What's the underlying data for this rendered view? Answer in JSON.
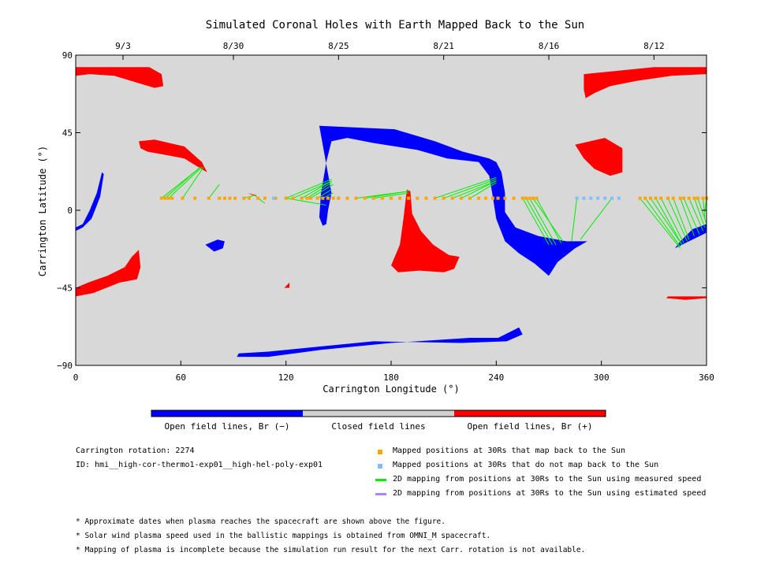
{
  "chart_data": {
    "type": "scatter",
    "title": "Simulated Coronal Holes with Earth Mapped Back to the Sun",
    "xlabel": "Carrington Longitude (°)",
    "ylabel": "Carrington Latitude (°)",
    "xlim": [
      0,
      360
    ],
    "ylim": [
      -90,
      90
    ],
    "xticks": [
      0,
      60,
      120,
      180,
      240,
      300,
      360
    ],
    "yticks": [
      90,
      45,
      0,
      -45,
      -90
    ],
    "ytick_labels": [
      "90",
      "45",
      "0",
      "−45",
      "−90"
    ],
    "top_axis_dates": [
      {
        "label": "9/3",
        "lon": 27
      },
      {
        "label": "8/30",
        "lon": 90
      },
      {
        "label": "8/25",
        "lon": 150
      },
      {
        "label": "8/21",
        "lon": 210
      },
      {
        "label": "8/16",
        "lon": 270
      },
      {
        "label": "8/12",
        "lon": 330
      }
    ],
    "colors": {
      "negative": "#0000ff",
      "positive": "#ff0000",
      "closed": "#d8d8d8",
      "mapped": "#ffa500",
      "unmapped": "#7fbfff",
      "measured_line": "#00ee00",
      "estimated_line": "#b280ff"
    },
    "coronal_holes": [
      {
        "polarity": "positive",
        "polygon": [
          [
            0,
            83
          ],
          [
            42,
            83
          ],
          [
            49,
            79
          ],
          [
            50,
            72
          ],
          [
            45,
            71
          ],
          [
            35,
            74
          ],
          [
            22,
            78
          ],
          [
            8,
            79
          ],
          [
            0,
            78
          ]
        ]
      },
      {
        "polarity": "positive",
        "polygon": [
          [
            290,
            79
          ],
          [
            330,
            83
          ],
          [
            360,
            83
          ],
          [
            360,
            79
          ],
          [
            340,
            78
          ],
          [
            320,
            75
          ],
          [
            305,
            72
          ],
          [
            296,
            68
          ],
          [
            291,
            65
          ],
          [
            290,
            70
          ]
        ]
      },
      {
        "polarity": "positive",
        "polygon": [
          [
            36,
            40
          ],
          [
            45,
            41
          ],
          [
            62,
            37
          ],
          [
            72,
            28
          ],
          [
            75,
            22
          ],
          [
            70,
            25
          ],
          [
            62,
            30
          ],
          [
            52,
            32
          ],
          [
            41,
            34
          ],
          [
            37,
            36
          ]
        ]
      },
      {
        "polarity": "positive",
        "polygon": [
          [
            285,
            38
          ],
          [
            302,
            42
          ],
          [
            312,
            36
          ],
          [
            312,
            22
          ],
          [
            305,
            20
          ],
          [
            296,
            24
          ],
          [
            290,
            30
          ]
        ]
      },
      {
        "polarity": "positive",
        "polygon": [
          [
            0,
            -50
          ],
          [
            10,
            -48
          ],
          [
            25,
            -42
          ],
          [
            35,
            -40
          ],
          [
            37,
            -33
          ],
          [
            36,
            -23
          ],
          [
            32,
            -27
          ],
          [
            28,
            -33
          ],
          [
            18,
            -38
          ],
          [
            7,
            -42
          ],
          [
            0,
            -45
          ]
        ]
      },
      {
        "polarity": "positive",
        "polygon": [
          [
            180,
            -32
          ],
          [
            185,
            -20
          ],
          [
            187,
            -5
          ],
          [
            189,
            12
          ],
          [
            191,
            11
          ],
          [
            192,
            -2
          ],
          [
            197,
            -12
          ],
          [
            204,
            -20
          ],
          [
            213,
            -26
          ],
          [
            219,
            -27
          ],
          [
            216,
            -34
          ],
          [
            210,
            -36
          ],
          [
            196,
            -35
          ],
          [
            184,
            -36
          ]
        ]
      },
      {
        "polarity": "positive",
        "polygon": [
          [
            120,
            -44
          ],
          [
            122,
            -42
          ],
          [
            122,
            -45
          ],
          [
            119,
            -45
          ]
        ]
      },
      {
        "polarity": "positive",
        "polygon": [
          [
            337,
            -51
          ],
          [
            348,
            -52
          ],
          [
            360,
            -51
          ],
          [
            360,
            -50
          ],
          [
            350,
            -50
          ],
          [
            338,
            -50
          ]
        ]
      },
      {
        "polarity": "positive",
        "polygon": [
          [
            98,
            10
          ],
          [
            102,
            9
          ],
          [
            106,
            6
          ],
          [
            103,
            8
          ]
        ]
      },
      {
        "polarity": "negative",
        "polygon": [
          [
            139,
            49
          ],
          [
            160,
            48
          ],
          [
            182,
            47
          ],
          [
            205,
            40
          ],
          [
            221,
            34
          ],
          [
            236,
            30
          ],
          [
            240,
            28
          ],
          [
            243,
            22
          ],
          [
            245,
            10
          ],
          [
            245,
            -1
          ],
          [
            251,
            -10
          ],
          [
            264,
            -15
          ],
          [
            280,
            -18
          ],
          [
            292,
            -18
          ],
          [
            285,
            -22
          ],
          [
            275,
            -30
          ],
          [
            270,
            -38
          ],
          [
            262,
            -31
          ],
          [
            253,
            -25
          ],
          [
            245,
            -18
          ],
          [
            240,
            -5
          ],
          [
            238,
            8
          ],
          [
            236,
            20
          ],
          [
            230,
            28
          ],
          [
            212,
            30
          ],
          [
            195,
            35
          ],
          [
            170,
            39
          ],
          [
            155,
            42
          ],
          [
            146,
            40
          ],
          [
            143,
            28
          ],
          [
            140,
            10
          ],
          [
            139,
            -4
          ],
          [
            141,
            -9
          ],
          [
            143,
            -8
          ],
          [
            144,
            0
          ],
          [
            146,
            10
          ]
        ]
      },
      {
        "polarity": "negative",
        "polygon": [
          [
            93,
            -83
          ],
          [
            110,
            -82
          ],
          [
            140,
            -79
          ],
          [
            170,
            -76
          ],
          [
            220,
            -77
          ],
          [
            246,
            -76
          ],
          [
            255,
            -72
          ],
          [
            253,
            -68
          ],
          [
            241,
            -74
          ],
          [
            225,
            -74
          ],
          [
            180,
            -77
          ],
          [
            140,
            -81
          ],
          [
            110,
            -85
          ],
          [
            92,
            -85
          ]
        ]
      },
      {
        "polarity": "negative",
        "polygon": [
          [
            74,
            -20
          ],
          [
            81,
            -17
          ],
          [
            85,
            -18
          ],
          [
            84,
            -22
          ],
          [
            79,
            -24
          ]
        ]
      },
      {
        "polarity": "negative",
        "polygon": [
          [
            0,
            -12
          ],
          [
            4,
            -10
          ],
          [
            9,
            -5
          ],
          [
            11,
            0
          ],
          [
            14,
            8
          ],
          [
            16,
            21
          ],
          [
            15,
            22
          ],
          [
            12,
            10
          ],
          [
            8,
            0
          ],
          [
            4,
            -8
          ],
          [
            0,
            -10
          ]
        ]
      },
      {
        "polarity": "negative",
        "polygon": [
          [
            342,
            -22
          ],
          [
            350,
            -18
          ],
          [
            360,
            -13
          ],
          [
            360,
            -8
          ],
          [
            352,
            -11
          ],
          [
            345,
            -18
          ]
        ]
      }
    ],
    "mapped_positions": {
      "latitude": 7,
      "mapped_lons": [
        49,
        51,
        53,
        55,
        61,
        68,
        76,
        82,
        85,
        88,
        91,
        96,
        99,
        104,
        108,
        114,
        120,
        124,
        129,
        132,
        134,
        138,
        141,
        144,
        147,
        150,
        155,
        160,
        165,
        170,
        175,
        180,
        185,
        190,
        195,
        200,
        205,
        210,
        215,
        220,
        225,
        230,
        234,
        238,
        241,
        245,
        250,
        255,
        257,
        259,
        261,
        263,
        322,
        325,
        328,
        331,
        334,
        338,
        341,
        345,
        347,
        350,
        353,
        355,
        358,
        360
      ],
      "unmapped_lons": [
        113,
        286,
        290,
        294,
        298,
        302,
        306,
        310
      ]
    },
    "measured_mappings": [
      [
        [
          49,
          7
        ],
        [
          70,
          24
        ]
      ],
      [
        [
          51,
          7
        ],
        [
          71,
          25
        ]
      ],
      [
        [
          53,
          7
        ],
        [
          72,
          25
        ]
      ],
      [
        [
          61,
          7
        ],
        [
          73,
          25
        ]
      ],
      [
        [
          76,
          7
        ],
        [
          82,
          15
        ]
      ],
      [
        [
          96,
          7
        ],
        [
          103,
          9
        ]
      ],
      [
        [
          104,
          7
        ],
        [
          108,
          4
        ]
      ],
      [
        [
          120,
          7
        ],
        [
          146,
          18
        ]
      ],
      [
        [
          124,
          7
        ],
        [
          146,
          17
        ]
      ],
      [
        [
          129,
          7
        ],
        [
          146,
          17
        ]
      ],
      [
        [
          132,
          7
        ],
        [
          146,
          16
        ]
      ],
      [
        [
          134,
          7
        ],
        [
          147,
          15
        ]
      ],
      [
        [
          138,
          7
        ],
        [
          146,
          12
        ]
      ],
      [
        [
          141,
          7
        ],
        [
          147,
          10
        ]
      ],
      [
        [
          120,
          7
        ],
        [
          143,
          3
        ]
      ],
      [
        [
          160,
          7
        ],
        [
          190,
          11
        ]
      ],
      [
        [
          165,
          7
        ],
        [
          190,
          11
        ]
      ],
      [
        [
          170,
          7
        ],
        [
          190,
          10
        ]
      ],
      [
        [
          205,
          7
        ],
        [
          240,
          19
        ]
      ],
      [
        [
          210,
          7
        ],
        [
          240,
          18
        ]
      ],
      [
        [
          215,
          7
        ],
        [
          240,
          17
        ]
      ],
      [
        [
          220,
          7
        ],
        [
          240,
          17
        ]
      ],
      [
        [
          225,
          7
        ],
        [
          240,
          16
        ]
      ],
      [
        [
          255,
          7
        ],
        [
          270,
          -20
        ]
      ],
      [
        [
          257,
          7
        ],
        [
          272,
          -20
        ]
      ],
      [
        [
          259,
          7
        ],
        [
          274,
          -20
        ]
      ],
      [
        [
          261,
          7
        ],
        [
          278,
          -18
        ]
      ],
      [
        [
          263,
          7
        ],
        [
          277,
          -19
        ]
      ],
      [
        [
          286,
          7
        ],
        [
          283,
          -18
        ]
      ],
      [
        [
          306,
          7
        ],
        [
          288,
          -17
        ]
      ],
      [
        [
          322,
          7
        ],
        [
          345,
          -22
        ]
      ],
      [
        [
          325,
          7
        ],
        [
          345,
          -21
        ]
      ],
      [
        [
          328,
          7
        ],
        [
          346,
          -20
        ]
      ],
      [
        [
          331,
          7
        ],
        [
          346,
          -20
        ]
      ],
      [
        [
          334,
          7
        ],
        [
          347,
          -19
        ]
      ],
      [
        [
          338,
          7
        ],
        [
          349,
          -18
        ]
      ],
      [
        [
          341,
          7
        ],
        [
          350,
          -17
        ]
      ],
      [
        [
          345,
          7
        ],
        [
          353,
          -15
        ]
      ],
      [
        [
          347,
          7
        ],
        [
          356,
          -14
        ]
      ],
      [
        [
          350,
          7
        ],
        [
          358,
          -12
        ]
      ],
      [
        [
          353,
          7
        ],
        [
          359,
          -10
        ]
      ],
      [
        [
          355,
          7
        ],
        [
          360,
          -8
        ]
      ],
      [
        [
          358,
          7
        ],
        [
          359,
          -4
        ]
      ],
      [
        [
          360,
          7
        ],
        [
          359,
          -1
        ]
      ]
    ]
  },
  "colorbar": {
    "labels": [
      "Open field lines, Br (−)",
      "Closed field lines",
      "Open field lines, Br (+)"
    ],
    "colors": [
      "#0000ff",
      "#d0d0d0",
      "#ff0000"
    ]
  },
  "info": {
    "rotation": "Carrington rotation: 2274",
    "id": "ID: hmi__high-cor-thermo1-exp01__high-hel-poly-exp01"
  },
  "legend": [
    {
      "type": "square",
      "color": "#ffa500",
      "label": "Mapped positions at 30Rs that map back to the Sun"
    },
    {
      "type": "square",
      "color": "#7fbfff",
      "label": "Mapped positions at 30Rs that do not map back to the Sun"
    },
    {
      "type": "line",
      "color": "#00ee00",
      "label": "2D mapping from positions at 30Rs to the Sun using measured speed"
    },
    {
      "type": "line",
      "color": "#b280ff",
      "label": "2D mapping from positions at 30Rs to the Sun using estimated speed"
    }
  ],
  "notes": [
    "* Approximate dates when plasma reaches the spacecraft are shown above the figure.",
    "* Solar wind plasma speed used in the ballistic mappings is obtained from OMNI_M spacecraft.",
    "* Mapping of plasma is incomplete because the simulation run result for the next Carr. rotation is not available."
  ]
}
